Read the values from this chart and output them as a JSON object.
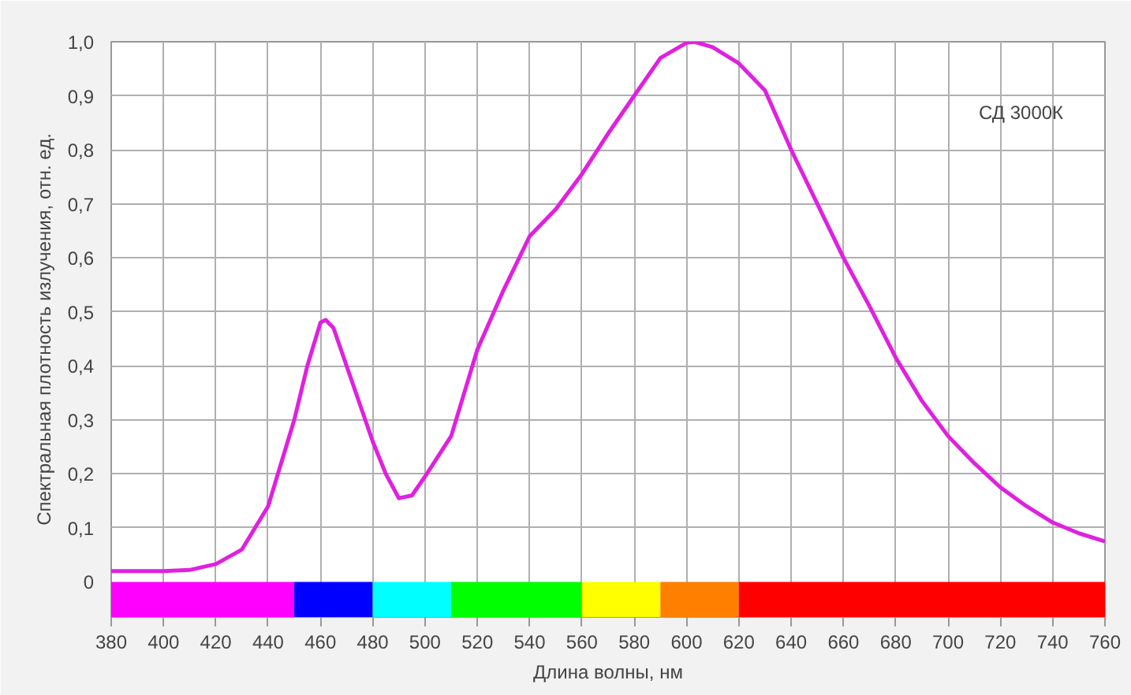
{
  "chart_data": {
    "type": "line",
    "xlabel": "Длина волны, нм",
    "ylabel": "Спектральная плотность излучения, отн. ед.",
    "annotations": [
      "СД 3000К"
    ],
    "x": [
      380,
      390,
      400,
      410,
      420,
      430,
      440,
      450,
      455,
      460,
      462,
      465,
      470,
      475,
      480,
      485,
      490,
      495,
      500,
      510,
      520,
      530,
      540,
      550,
      560,
      570,
      580,
      590,
      600,
      603,
      610,
      620,
      630,
      640,
      650,
      660,
      670,
      680,
      690,
      700,
      710,
      720,
      730,
      740,
      750,
      760
    ],
    "series": [
      {
        "color": "#e020e0",
        "values": [
          0.02,
          0.02,
          0.02,
          0.022,
          0.033,
          0.06,
          0.14,
          0.3,
          0.4,
          0.48,
          0.485,
          0.47,
          0.4,
          0.33,
          0.26,
          0.2,
          0.155,
          0.16,
          0.195,
          0.27,
          0.43,
          0.54,
          0.64,
          0.69,
          0.755,
          0.83,
          0.9,
          0.97,
          0.998,
          1.0,
          0.99,
          0.96,
          0.91,
          0.8,
          0.7,
          0.6,
          0.51,
          0.415,
          0.335,
          0.27,
          0.22,
          0.175,
          0.14,
          0.11,
          0.09,
          0.075
        ]
      }
    ],
    "xlim": [
      380,
      760
    ],
    "ylim": [
      -0.065,
      1.0
    ],
    "xticks": [
      380,
      400,
      420,
      440,
      460,
      480,
      500,
      520,
      540,
      560,
      580,
      600,
      620,
      640,
      660,
      680,
      700,
      720,
      740,
      760
    ],
    "yticks": [
      {
        "value": 0,
        "label": "0"
      },
      {
        "value": 0.1,
        "label": "0,1"
      },
      {
        "value": 0.2,
        "label": "0,2"
      },
      {
        "value": 0.3,
        "label": "0,3"
      },
      {
        "value": 0.4,
        "label": "0,4"
      },
      {
        "value": 0.5,
        "label": "0,5"
      },
      {
        "value": 0.6,
        "label": "0,6"
      },
      {
        "value": 0.7,
        "label": "0,7"
      },
      {
        "value": 0.8,
        "label": "0,8"
      },
      {
        "value": 0.9,
        "label": "0,9"
      },
      {
        "value": 1.0,
        "label": "1,0"
      }
    ],
    "bands": [
      {
        "axis": "x",
        "from": 380,
        "to": 450,
        "color": "#ff00ff"
      },
      {
        "axis": "x",
        "from": 450,
        "to": 480,
        "color": "#0000ff"
      },
      {
        "axis": "x",
        "from": 480,
        "to": 510,
        "color": "#00ffff"
      },
      {
        "axis": "x",
        "from": 510,
        "to": 560,
        "color": "#00ff00"
      },
      {
        "axis": "x",
        "from": 560,
        "to": 590,
        "color": "#ffff00"
      },
      {
        "axis": "x",
        "from": 590,
        "to": 620,
        "color": "#ff8000"
      },
      {
        "axis": "x",
        "from": 620,
        "to": 760,
        "color": "#ff0000"
      }
    ],
    "grid": true,
    "marker": "none",
    "line_style": "solid"
  }
}
